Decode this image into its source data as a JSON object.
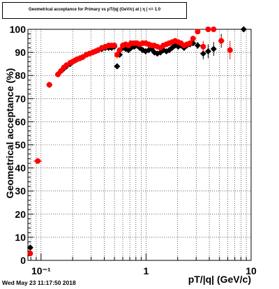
{
  "chart_data": {
    "type": "scatter",
    "title": "Geometrical acceptance for Primary vs pT/|q| (GeV/c) at | η | <= 1.0",
    "xlabel": "pT/|q| (GeV/c)",
    "ylabel": "Geometrical acceptance (%)",
    "xscale": "log",
    "xlim": [
      0.075,
      10
    ],
    "ylim": [
      0,
      100
    ],
    "x_tick_labels": [
      {
        "value": 0.1,
        "label": "10⁻¹"
      },
      {
        "value": 1,
        "label": "1"
      },
      {
        "value": 10,
        "label": "10"
      }
    ],
    "y_tick_labels": [
      "0",
      "10",
      "20",
      "30",
      "40",
      "50",
      "60",
      "70",
      "80",
      "90",
      "100"
    ],
    "grid": true,
    "series": [
      {
        "color": "#000000",
        "marker": "diamond",
        "points": [
          {
            "x": 0.079,
            "y": 5.5
          },
          {
            "x": 0.12,
            "y": 76
          },
          {
            "x": 0.145,
            "y": 80.5
          },
          {
            "x": 0.155,
            "y": 82
          },
          {
            "x": 0.165,
            "y": 83
          },
          {
            "x": 0.175,
            "y": 84
          },
          {
            "x": 0.19,
            "y": 85
          },
          {
            "x": 0.2,
            "y": 86
          },
          {
            "x": 0.21,
            "y": 86.5
          },
          {
            "x": 0.22,
            "y": 87
          },
          {
            "x": 0.235,
            "y": 87.5
          },
          {
            "x": 0.25,
            "y": 88
          },
          {
            "x": 0.27,
            "y": 89
          },
          {
            "x": 0.29,
            "y": 89.5
          },
          {
            "x": 0.31,
            "y": 90
          },
          {
            "x": 0.33,
            "y": 90.5
          },
          {
            "x": 0.35,
            "y": 91
          },
          {
            "x": 0.38,
            "y": 91.5
          },
          {
            "x": 0.41,
            "y": 92
          },
          {
            "x": 0.44,
            "y": 92
          },
          {
            "x": 0.47,
            "y": 92
          },
          {
            "x": 0.5,
            "y": 92.5
          },
          {
            "x": 0.53,
            "y": 84,
            "yerr": 1
          },
          {
            "x": 0.56,
            "y": 89
          },
          {
            "x": 0.6,
            "y": 92
          },
          {
            "x": 0.64,
            "y": 91.5
          },
          {
            "x": 0.68,
            "y": 91
          },
          {
            "x": 0.72,
            "y": 92
          },
          {
            "x": 0.77,
            "y": 92.5
          },
          {
            "x": 0.82,
            "y": 93
          },
          {
            "x": 0.87,
            "y": 92
          },
          {
            "x": 0.93,
            "y": 91
          },
          {
            "x": 0.99,
            "y": 90.5
          },
          {
            "x": 1.06,
            "y": 91
          },
          {
            "x": 1.13,
            "y": 91.5
          },
          {
            "x": 1.2,
            "y": 90
          },
          {
            "x": 1.28,
            "y": 89.5
          },
          {
            "x": 1.37,
            "y": 90
          },
          {
            "x": 1.46,
            "y": 91
          },
          {
            "x": 1.56,
            "y": 90.5
          },
          {
            "x": 1.66,
            "y": 91
          },
          {
            "x": 1.77,
            "y": 92
          },
          {
            "x": 1.89,
            "y": 93
          },
          {
            "x": 2.02,
            "y": 92.5
          },
          {
            "x": 2.15,
            "y": 93
          },
          {
            "x": 2.3,
            "y": 92
          },
          {
            "x": 2.45,
            "y": 93
          },
          {
            "x": 2.62,
            "y": 93.5
          },
          {
            "x": 2.8,
            "y": 94
          },
          {
            "x": 3.1,
            "y": 93,
            "yerr": 1.5
          },
          {
            "x": 3.5,
            "y": 89.5,
            "yerr": 2.5
          },
          {
            "x": 3.9,
            "y": 90.5,
            "yerr": 3
          },
          {
            "x": 4.4,
            "y": 91.5,
            "yerr": 3
          },
          {
            "x": 5.2,
            "y": 95,
            "yerr": 3
          },
          {
            "x": 8.5,
            "y": 100
          }
        ]
      },
      {
        "color": "#ff0000",
        "marker": "circle",
        "points": [
          {
            "x": 0.079,
            "y": 3,
            "yerr": 1
          },
          {
            "x": 0.093,
            "y": 43,
            "xerr": [
              0.085,
              0.102
            ]
          },
          {
            "x": 0.12,
            "y": 76,
            "xerr": [
              0.113,
              0.128
            ]
          },
          {
            "x": 0.145,
            "y": 80.5
          },
          {
            "x": 0.155,
            "y": 82
          },
          {
            "x": 0.165,
            "y": 83.5
          },
          {
            "x": 0.175,
            "y": 84.5
          },
          {
            "x": 0.19,
            "y": 85.5
          },
          {
            "x": 0.2,
            "y": 86
          },
          {
            "x": 0.21,
            "y": 86.5
          },
          {
            "x": 0.22,
            "y": 87
          },
          {
            "x": 0.235,
            "y": 87.5
          },
          {
            "x": 0.25,
            "y": 88
          },
          {
            "x": 0.27,
            "y": 89
          },
          {
            "x": 0.29,
            "y": 89.5
          },
          {
            "x": 0.31,
            "y": 90
          },
          {
            "x": 0.33,
            "y": 90.5
          },
          {
            "x": 0.35,
            "y": 91
          },
          {
            "x": 0.38,
            "y": 92
          },
          {
            "x": 0.41,
            "y": 92.5
          },
          {
            "x": 0.44,
            "y": 93
          },
          {
            "x": 0.47,
            "y": 93
          },
          {
            "x": 0.5,
            "y": 93
          },
          {
            "x": 0.53,
            "y": 89,
            "yerr": 1.5
          },
          {
            "x": 0.56,
            "y": 91
          },
          {
            "x": 0.6,
            "y": 93
          },
          {
            "x": 0.64,
            "y": 93.5
          },
          {
            "x": 0.68,
            "y": 93
          },
          {
            "x": 0.72,
            "y": 94
          },
          {
            "x": 0.77,
            "y": 94
          },
          {
            "x": 0.82,
            "y": 94
          },
          {
            "x": 0.87,
            "y": 93.5
          },
          {
            "x": 0.93,
            "y": 94
          },
          {
            "x": 0.99,
            "y": 94
          },
          {
            "x": 1.06,
            "y": 93.5
          },
          {
            "x": 1.13,
            "y": 93
          },
          {
            "x": 1.2,
            "y": 93
          },
          {
            "x": 1.28,
            "y": 92.5
          },
          {
            "x": 1.37,
            "y": 92
          },
          {
            "x": 1.46,
            "y": 93
          },
          {
            "x": 1.56,
            "y": 93.5
          },
          {
            "x": 1.66,
            "y": 94
          },
          {
            "x": 1.77,
            "y": 94.5
          },
          {
            "x": 1.89,
            "y": 95
          },
          {
            "x": 2.02,
            "y": 94.5
          },
          {
            "x": 2.15,
            "y": 94
          },
          {
            "x": 2.3,
            "y": 93
          },
          {
            "x": 2.45,
            "y": 93.5
          },
          {
            "x": 2.62,
            "y": 94
          },
          {
            "x": 2.8,
            "y": 96
          },
          {
            "x": 3.1,
            "y": 99
          },
          {
            "x": 3.5,
            "y": 92.5,
            "yerr": 2.5
          },
          {
            "x": 3.9,
            "y": 100
          },
          {
            "x": 4.4,
            "y": 100
          },
          {
            "x": 5.2,
            "y": 95,
            "yerr": 2
          },
          {
            "x": 6.3,
            "y": 91,
            "yerr": 4
          }
        ]
      }
    ]
  },
  "timestamp": "Wed May 23 11:17:50 2018"
}
